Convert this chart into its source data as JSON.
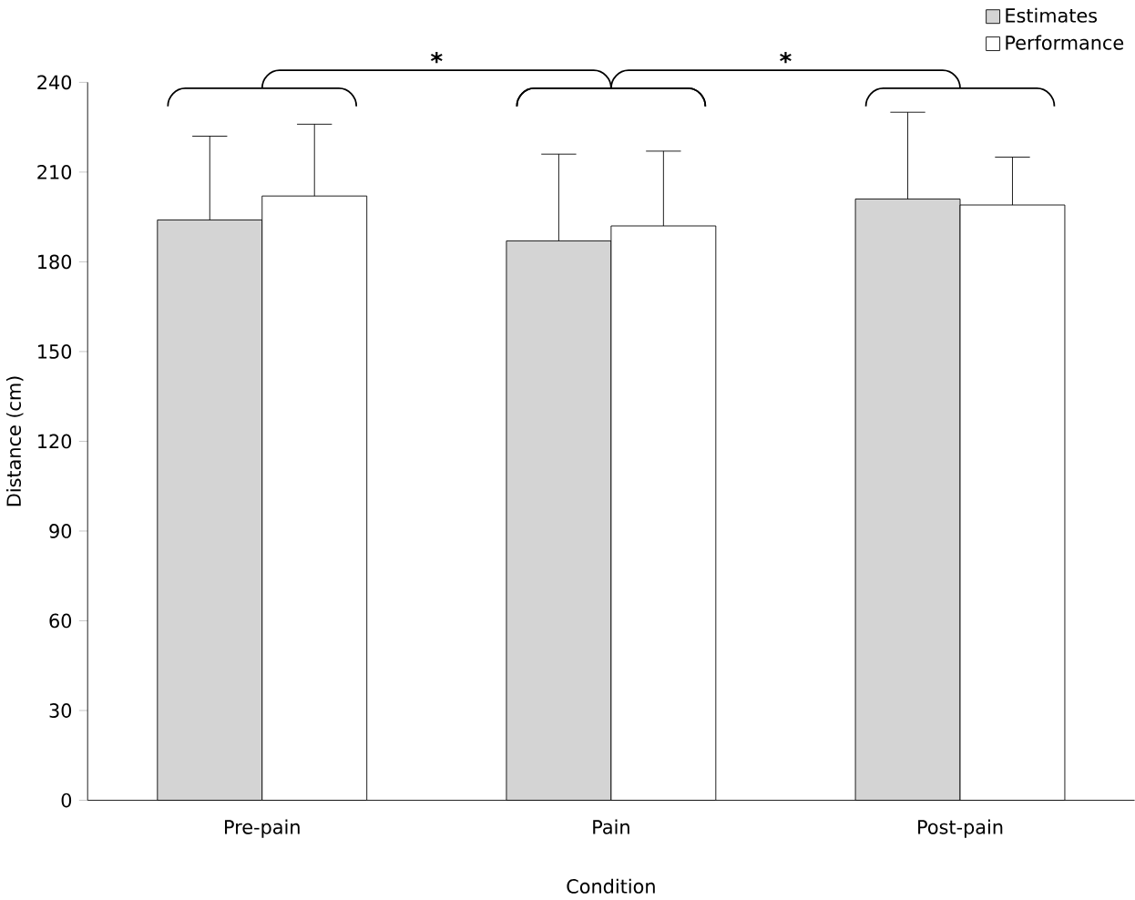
{
  "chart_data": {
    "type": "bar",
    "xlabel": "Condition",
    "ylabel": "Distance (cm)",
    "categories": [
      "Pre-pain",
      "Pain",
      "Post-pain"
    ],
    "series": [
      {
        "name": "Estimates",
        "color": "#d4d4d4",
        "values": [
          194,
          187,
          201
        ],
        "errors": [
          [
            194,
            222
          ],
          [
            187,
            216
          ],
          [
            201,
            230
          ]
        ]
      },
      {
        "name": "Performance",
        "color": "#ffffff",
        "values": [
          202,
          192,
          199
        ],
        "errors": [
          [
            202,
            226
          ],
          [
            192,
            217
          ],
          [
            199,
            215
          ]
        ]
      }
    ],
    "ylim": [
      0,
      240
    ],
    "yticks": [
      0,
      30,
      60,
      90,
      120,
      150,
      180,
      210,
      240
    ],
    "grid": false,
    "legend": "top right",
    "annotations": [
      "*",
      "*"
    ]
  }
}
